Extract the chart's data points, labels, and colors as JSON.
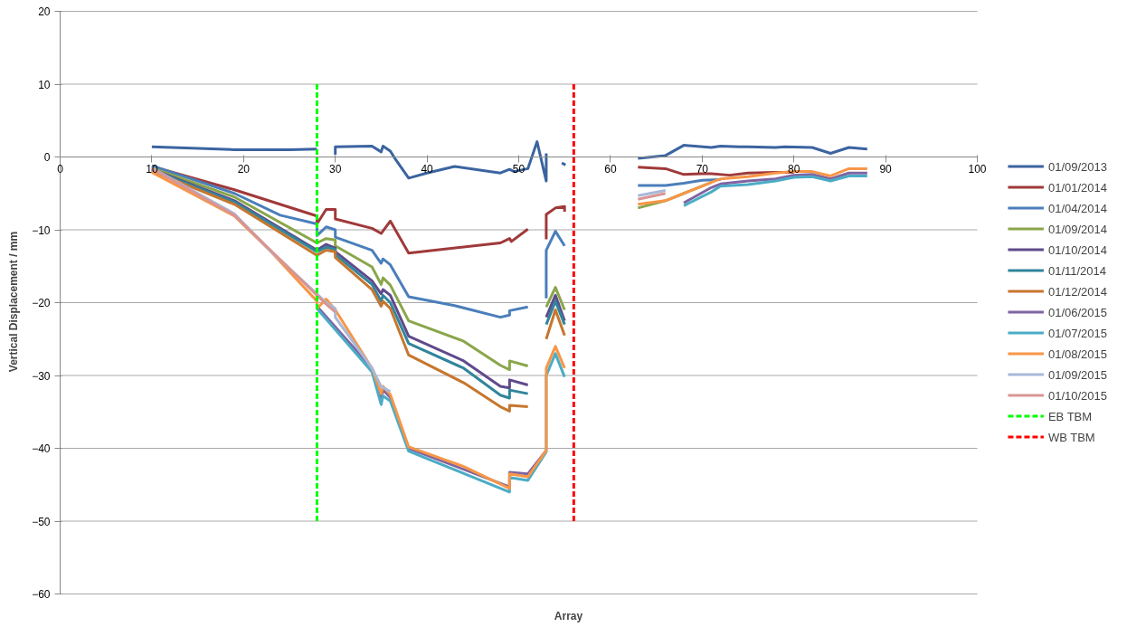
{
  "chart_data": {
    "type": "line",
    "xlabel": "Array",
    "ylabel": "Vertical Displacement / mm",
    "xlim": [
      0,
      100
    ],
    "xticks": [
      0,
      10,
      20,
      30,
      40,
      50,
      60,
      70,
      80,
      90,
      100
    ],
    "ylim": [
      -60,
      20
    ],
    "yticks": [
      -60,
      -50,
      -40,
      -30,
      -20,
      -10,
      0,
      10,
      20
    ],
    "grid": "y",
    "legend": "right",
    "line_style": "solid",
    "marker": "none",
    "series": [
      {
        "name": "01/09/2013",
        "color": "#3b64a0",
        "x": [
          10,
          19,
          25,
          28,
          29,
          30,
          30,
          34,
          35,
          35.2,
          36,
          36.5,
          38,
          40,
          43,
          48,
          49,
          49.5,
          51,
          52,
          53,
          53,
          54,
          54.7,
          55.1,
          60,
          63,
          66,
          68,
          71,
          72,
          74,
          75,
          78,
          79,
          82,
          84,
          86,
          88
        ],
        "values": [
          1.4,
          1.0,
          1.0,
          1.1,
          null,
          0.3,
          1.4,
          1.5,
          0.7,
          1.5,
          0.8,
          -0.2,
          -2.9,
          -2.2,
          -1.3,
          -2.2,
          -1.7,
          -2.0,
          -1.6,
          2.1,
          -3.3,
          0.5,
          null,
          -0.8,
          -1.1,
          null,
          -0.2,
          0.2,
          1.6,
          1.3,
          1.5,
          1.4,
          1.4,
          1.3,
          1.4,
          1.3,
          0.5,
          1.3,
          1.1
        ]
      },
      {
        "name": "01/01/2014",
        "color": "#a0393a",
        "x": [
          10,
          19,
          28,
          28,
          29,
          30,
          30,
          34,
          35,
          36,
          38,
          48,
          49,
          49.2,
          51,
          52,
          53,
          53,
          54,
          55,
          55,
          60,
          63,
          66,
          68,
          70,
          71,
          73,
          75,
          78,
          80
        ],
        "values": [
          -1.3,
          -4.5,
          -8.1,
          -9.2,
          -7.2,
          -7.2,
          -8.5,
          -9.8,
          -10.5,
          -8.8,
          -13.2,
          -11.8,
          -11.2,
          -11.6,
          -9.9,
          null,
          -11.3,
          -7.9,
          -7.0,
          -6.8,
          -7.5,
          null,
          -1.4,
          -1.6,
          -2.4,
          -2.3,
          -2.3,
          -2.5,
          -2.2,
          -2.1,
          -2.1
        ]
      },
      {
        "name": "01/04/2014",
        "color": "#4a7ebb",
        "x": [
          10,
          19,
          24,
          28,
          28,
          29,
          30,
          30,
          34,
          35,
          35.2,
          36,
          38,
          43,
          48,
          49,
          49,
          51,
          52,
          53,
          53,
          54,
          55,
          60,
          63,
          66,
          68,
          70,
          72
        ],
        "values": [
          -1.2,
          -5.0,
          -8.0,
          -9.2,
          -10.8,
          -9.6,
          -10.0,
          -11.0,
          -12.8,
          -14.6,
          -14.0,
          -14.8,
          -19.2,
          -20.4,
          -22.0,
          -21.7,
          -21.1,
          -20.6,
          null,
          -19.4,
          -12.8,
          -10.2,
          -12.2,
          null,
          -3.9,
          -3.9,
          -3.6,
          -3.2,
          -3.1
        ]
      },
      {
        "name": "01/09/2014",
        "color": "#8aa64a",
        "x": [
          10,
          19,
          28,
          29,
          30,
          30,
          34,
          35,
          35.2,
          36,
          38,
          44,
          48,
          49,
          49,
          51,
          52,
          53,
          54,
          55,
          60,
          63,
          66,
          68,
          71
        ],
        "values": [
          -1.5,
          -5.5,
          -11.8,
          -11.2,
          -11.4,
          -12.2,
          -15.1,
          -17.5,
          -16.6,
          -17.6,
          -22.5,
          -25.3,
          -28.6,
          -29.2,
          -28.0,
          -28.7,
          null,
          -20.6,
          -17.9,
          -21.0,
          null,
          -7.0,
          -6.0,
          -5.0,
          -3.5
        ]
      },
      {
        "name": "01/10/2014",
        "color": "#5f4a8b",
        "x": [
          10,
          19,
          28,
          29,
          30,
          30,
          34,
          35,
          35.2,
          36,
          38,
          44,
          48,
          49,
          49,
          51,
          52,
          53,
          54,
          55
        ],
        "values": [
          -1.7,
          -6.0,
          -12.8,
          -12.0,
          -12.5,
          -13.0,
          -17.0,
          -18.8,
          -18.2,
          -19.0,
          -24.6,
          -28.0,
          -31.5,
          -31.7,
          -30.6,
          -31.3,
          null,
          -22.0,
          -19.0,
          -22.5
        ]
      },
      {
        "name": "01/11/2014",
        "color": "#31859c",
        "x": [
          10,
          19,
          28,
          29,
          30,
          30,
          34,
          35,
          35.2,
          36,
          38,
          44,
          48,
          49,
          49,
          51,
          52,
          53,
          54,
          55
        ],
        "values": [
          -1.8,
          -6.2,
          -13.0,
          -12.4,
          -12.7,
          -13.4,
          -17.5,
          -19.8,
          -19.0,
          -20.0,
          -25.6,
          -29.0,
          -32.7,
          -33.1,
          -32.0,
          -32.5,
          null,
          -23.0,
          -19.8,
          -23.0
        ]
      },
      {
        "name": "01/12/2014",
        "color": "#c6762e",
        "x": [
          10,
          19,
          28,
          29,
          30,
          30,
          34,
          35,
          35.2,
          36,
          38,
          44,
          48,
          49,
          49,
          51,
          52,
          53,
          54,
          55
        ],
        "values": [
          -1.9,
          -6.5,
          -13.5,
          -12.8,
          -13.0,
          -13.8,
          -18.2,
          -20.5,
          -19.8,
          -20.8,
          -27.2,
          -31.0,
          -34.3,
          -34.9,
          -34.1,
          -34.3,
          null,
          -25.0,
          -21.0,
          -24.5
        ]
      },
      {
        "name": "01/06/2015",
        "color": "#8064a2",
        "x": [
          28,
          34,
          35,
          35.2,
          36,
          38,
          49,
          49,
          51,
          53,
          60,
          68,
          71,
          72,
          75,
          78,
          80,
          82,
          84,
          86,
          88
        ],
        "values": [
          -20.5,
          -29.0,
          -33.0,
          -32.0,
          -33.0,
          -40.0,
          -45.3,
          -43.3,
          -43.5,
          -40.3,
          null,
          -6.3,
          -4.2,
          -3.7,
          -3.3,
          -3.0,
          -2.5,
          -2.4,
          -3.0,
          -2.2,
          -2.2
        ]
      },
      {
        "name": "01/07/2015",
        "color": "#4bacc6",
        "x": [
          28,
          34,
          35,
          35.2,
          36,
          38,
          49,
          49,
          51,
          53,
          53,
          54,
          55,
          60,
          68,
          71,
          72,
          75,
          78,
          80,
          82,
          84,
          86,
          88
        ],
        "values": [
          -20.8,
          -29.5,
          -34.0,
          -32.8,
          -33.5,
          -40.4,
          -46.0,
          -44.0,
          -44.4,
          -40.5,
          -30.0,
          -27.0,
          -30.2,
          null,
          -6.7,
          -4.8,
          -4.0,
          -3.8,
          -3.3,
          -2.8,
          -2.7,
          -3.3,
          -2.6,
          -2.6
        ]
      },
      {
        "name": "01/08/2015",
        "color": "#f79646",
        "x": [
          10,
          19,
          23,
          28,
          28,
          29,
          30,
          34,
          35,
          35.2,
          36,
          38,
          44,
          49,
          49,
          51,
          53,
          53,
          54,
          55,
          60,
          63,
          66,
          68,
          71,
          72,
          75,
          78,
          80,
          82,
          84,
          86,
          88
        ],
        "values": [
          -2.1,
          -8.1,
          -13.0,
          -19.8,
          -20.8,
          -19.5,
          -21.0,
          -29.0,
          -32.5,
          -31.5,
          -32.6,
          -39.8,
          -42.5,
          -45.5,
          -43.5,
          -43.9,
          -40.3,
          -29.0,
          -26.0,
          -29.0,
          null,
          -6.5,
          -6.0,
          -5.0,
          -3.5,
          -3.0,
          -2.7,
          -2.2,
          -2.0,
          -2.0,
          -2.6,
          -1.6,
          -1.6
        ]
      },
      {
        "name": "01/09/2015",
        "color": "#a8b8d8",
        "x": [
          10,
          19,
          23,
          28,
          29,
          30,
          30,
          34,
          35,
          36,
          50,
          63,
          66
        ],
        "values": [
          -1.5,
          -7.8,
          -13.0,
          -18.8,
          -20.0,
          -20.8,
          -22.0,
          -29.0,
          -31.5,
          -32.2,
          null,
          -5.3,
          -4.6
        ]
      },
      {
        "name": "01/10/2015",
        "color": "#d99594",
        "x": [
          10,
          19,
          28,
          29,
          30,
          50,
          63,
          66
        ],
        "values": [
          -1.6,
          -8.0,
          -19.0,
          -20.2,
          -21.3,
          null,
          -5.8,
          -5.0
        ]
      },
      {
        "name": "EB TBM",
        "color": "#00ff00",
        "line_style": "dashed",
        "x": [
          28,
          28
        ],
        "values": [
          10,
          -50
        ]
      },
      {
        "name": "WB TBM",
        "color": "#ff0000",
        "line_style": "dashed",
        "x": [
          56,
          56
        ],
        "values": [
          10,
          -50
        ]
      }
    ]
  }
}
